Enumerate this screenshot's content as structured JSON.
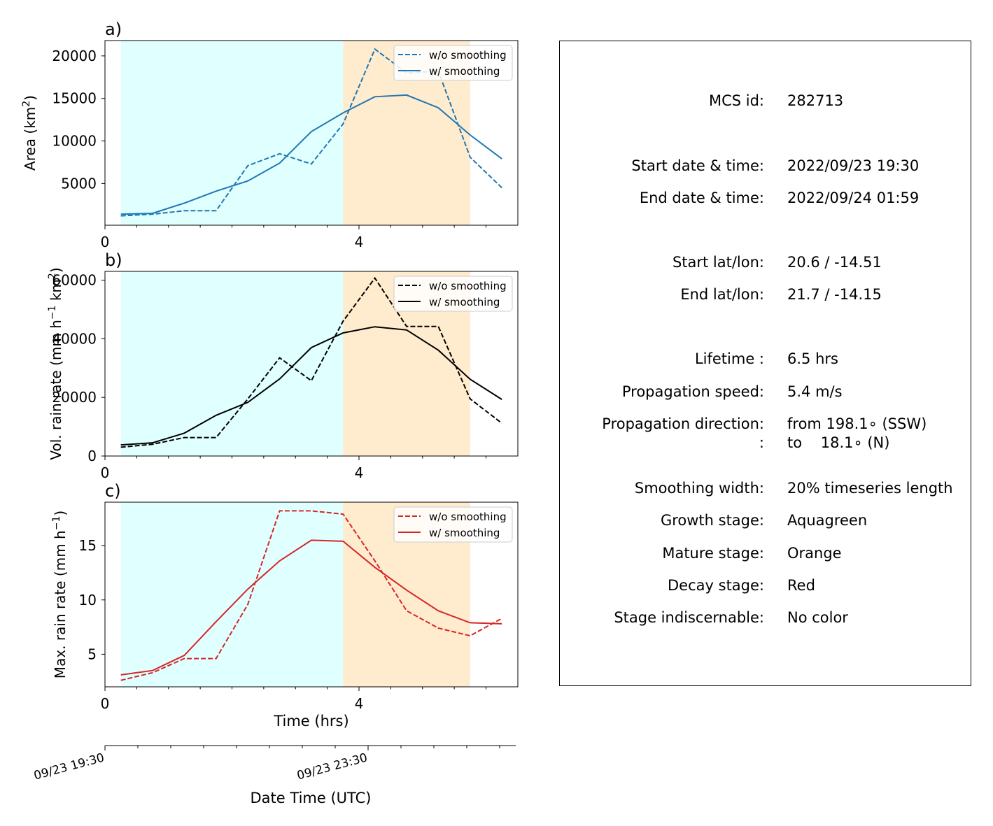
{
  "panels": [
    {
      "label": "a)",
      "ylabel_text": "Area  (km",
      "ylabel_sup": "2",
      "ylabel_tail": ")",
      "color": "#1f77b4"
    },
    {
      "label": "b)",
      "ylabel_text": "Vol. rain rate (mm h",
      "ylabel_sup": "−1",
      "ylabel_mid": " km",
      "ylabel_sup2": "2",
      "ylabel_tail": ")",
      "color": "#000000"
    },
    {
      "label": "c)",
      "ylabel_text": "Max. rain rate  (mm h",
      "ylabel_sup": "−1",
      "ylabel_tail": ")",
      "color": "#d62728"
    }
  ],
  "legend": {
    "dashed": "w/o smoothing",
    "solid": "w/ smoothing"
  },
  "xaxis": {
    "label": "Time (hrs)",
    "ticks": [
      "0",
      "4"
    ]
  },
  "date_axis": {
    "label": "Date Time (UTC)",
    "ticks": [
      "09/23 19:30",
      "09/23 23:30"
    ]
  },
  "stage_colors": {
    "growth": "#e0ffff",
    "mature": "#ffebcd"
  },
  "chart_data": [
    {
      "type": "line",
      "ylim": [
        100,
        21800
      ],
      "yticks": [
        5000,
        10000,
        15000,
        20000
      ],
      "xlim": [
        0,
        6.5
      ],
      "stages": [
        {
          "name": "growth",
          "x": [
            0.25,
            3.75
          ]
        },
        {
          "name": "mature",
          "x": [
            3.75,
            5.75
          ]
        }
      ],
      "x": [
        0.25,
        0.75,
        1.25,
        1.75,
        2.25,
        2.75,
        3.25,
        3.75,
        4.25,
        4.75,
        5.25,
        5.75,
        6.25
      ],
      "series": [
        {
          "name": "w/o smoothing",
          "style": "dashed",
          "values": [
            1200,
            1400,
            1800,
            1800,
            7100,
            8500,
            7300,
            12000,
            20800,
            18000,
            18200,
            8100,
            4500
          ]
        },
        {
          "name": "w/ smoothing",
          "style": "solid",
          "values": [
            1400,
            1500,
            2700,
            4100,
            5300,
            7400,
            11100,
            13300,
            15200,
            15400,
            13900,
            10700,
            7900
          ]
        }
      ]
    },
    {
      "type": "line",
      "ylim": [
        0,
        63000
      ],
      "yticks": [
        0,
        20000,
        40000,
        60000
      ],
      "xlim": [
        0,
        6.5
      ],
      "stages": [
        {
          "name": "growth",
          "x": [
            0.25,
            3.75
          ]
        },
        {
          "name": "mature",
          "x": [
            3.75,
            5.75
          ]
        }
      ],
      "x": [
        0.25,
        0.75,
        1.25,
        1.75,
        2.25,
        2.75,
        3.25,
        3.75,
        4.25,
        4.75,
        5.25,
        5.75,
        6.25
      ],
      "series": [
        {
          "name": "w/o smoothing",
          "style": "dashed",
          "values": [
            3000,
            4000,
            6300,
            6300,
            19500,
            33500,
            25700,
            46000,
            60700,
            44200,
            44200,
            19500,
            11200
          ]
        },
        {
          "name": "w/ smoothing",
          "style": "solid",
          "values": [
            3800,
            4500,
            7800,
            13900,
            18300,
            26300,
            37000,
            42000,
            44100,
            43000,
            36100,
            26200,
            19300
          ]
        }
      ]
    },
    {
      "type": "line",
      "ylim": [
        2,
        19
      ],
      "yticks": [
        5,
        10,
        15
      ],
      "xlim": [
        0,
        6.5
      ],
      "stages": [
        {
          "name": "growth",
          "x": [
            0.25,
            3.75
          ]
        },
        {
          "name": "mature",
          "x": [
            3.75,
            5.75
          ]
        }
      ],
      "x": [
        0.25,
        0.75,
        1.25,
        1.75,
        2.25,
        2.75,
        3.25,
        3.75,
        4.25,
        4.75,
        5.25,
        5.75,
        6.25
      ],
      "series": [
        {
          "name": "w/o smoothing",
          "style": "dashed",
          "values": [
            2.6,
            3.3,
            4.6,
            4.6,
            9.6,
            18.2,
            18.2,
            17.9,
            13.6,
            9.0,
            7.4,
            6.7,
            8.3
          ]
        },
        {
          "name": "w/ smoothing",
          "style": "solid",
          "values": [
            3.1,
            3.5,
            4.9,
            8.0,
            11.0,
            13.6,
            15.5,
            15.4,
            13.0,
            10.9,
            9.0,
            7.9,
            7.8
          ]
        }
      ]
    }
  ],
  "info": {
    "mcs_id_label": "MCS id:",
    "mcs_id": "282713",
    "start_dt_label": "Start date & time:",
    "start_dt": "2022/09/23 19:30",
    "end_dt_label": "End date & time:",
    "end_dt": "2022/09/24 01:59",
    "start_ll_label": "Start lat/lon:",
    "start_ll": "20.6 / -14.51",
    "end_ll_label": "End lat/lon:",
    "end_ll": "21.7 / -14.15",
    "lifetime_label": "Lifetime :",
    "lifetime": "6.5 hrs",
    "speed_label": "Propagation speed:",
    "speed": "5.4 m/s",
    "dir_label": "Propagation direction:",
    "dir_from": "from 198.1∘ (SSW)",
    "dir_label2": ":",
    "dir_to": "to    18.1∘ (N)",
    "smooth_label": "Smoothing width:",
    "smooth": "20% timeseries length",
    "growth_label": "Growth stage:",
    "growth": "Aquagreen",
    "mature_label": "Mature stage:",
    "mature": "Orange",
    "decay_label": "Decay stage:",
    "decay": "Red",
    "indisc_label": "Stage indiscernable:",
    "indisc": "No color"
  }
}
